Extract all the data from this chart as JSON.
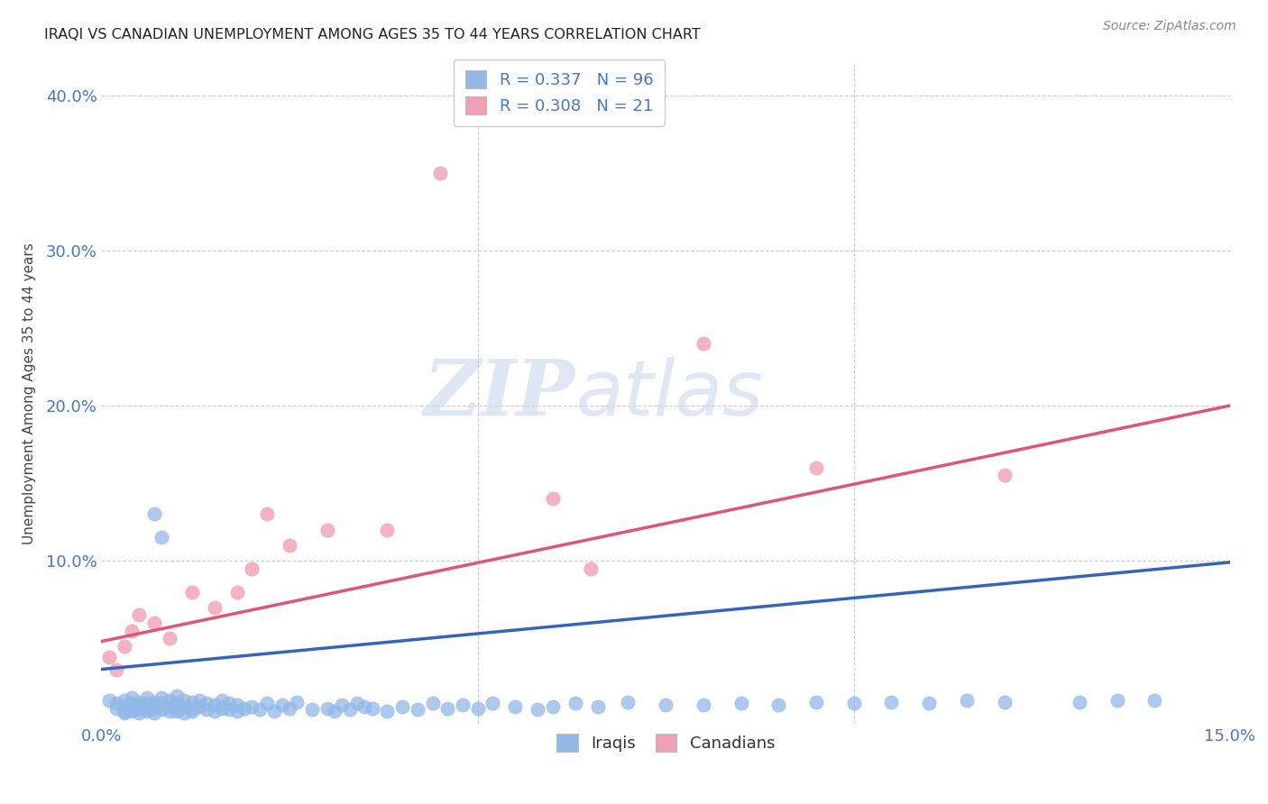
{
  "title": "IRAQI VS CANADIAN UNEMPLOYMENT AMONG AGES 35 TO 44 YEARS CORRELATION CHART",
  "source": "Source: ZipAtlas.com",
  "ylabel": "Unemployment Among Ages 35 to 44 years",
  "xlim": [
    0.0,
    0.15
  ],
  "ylim": [
    -0.005,
    0.42
  ],
  "xticks": [
    0.0,
    0.05,
    0.1,
    0.15
  ],
  "xtick_labels": [
    "0.0%",
    "",
    "",
    "15.0%"
  ],
  "yticks": [
    0.1,
    0.2,
    0.3,
    0.4
  ],
  "ytick_labels": [
    "10.0%",
    "20.0%",
    "30.0%",
    "40.0%"
  ],
  "background_color": "#ffffff",
  "grid_color": "#cccccc",
  "legend_R_iraqis": "0.337",
  "legend_N_iraqis": "96",
  "legend_R_canadians": "0.308",
  "legend_N_canadians": "21",
  "iraqis_color": "#92b8e8",
  "canadians_color": "#f0a0b5",
  "iraqis_line_color": "#3366bb",
  "canadians_line_color": "#e05575",
  "axis_label_color": "#4477cc",
  "iraqis_x": [
    0.001,
    0.002,
    0.002,
    0.003,
    0.003,
    0.003,
    0.003,
    0.004,
    0.004,
    0.004,
    0.004,
    0.005,
    0.005,
    0.005,
    0.005,
    0.006,
    0.006,
    0.006,
    0.006,
    0.007,
    0.007,
    0.007,
    0.007,
    0.008,
    0.008,
    0.008,
    0.009,
    0.009,
    0.009,
    0.01,
    0.01,
    0.01,
    0.01,
    0.011,
    0.011,
    0.011,
    0.012,
    0.012,
    0.012,
    0.013,
    0.013,
    0.014,
    0.014,
    0.015,
    0.015,
    0.016,
    0.016,
    0.017,
    0.017,
    0.018,
    0.018,
    0.019,
    0.02,
    0.021,
    0.022,
    0.023,
    0.024,
    0.025,
    0.026,
    0.028,
    0.03,
    0.031,
    0.032,
    0.033,
    0.034,
    0.035,
    0.036,
    0.038,
    0.04,
    0.042,
    0.044,
    0.046,
    0.048,
    0.05,
    0.052,
    0.055,
    0.058,
    0.06,
    0.063,
    0.066,
    0.07,
    0.075,
    0.08,
    0.085,
    0.09,
    0.095,
    0.1,
    0.105,
    0.11,
    0.115,
    0.12,
    0.13,
    0.135,
    0.14,
    0.007,
    0.008
  ],
  "iraqis_y": [
    0.01,
    0.005,
    0.008,
    0.002,
    0.006,
    0.01,
    0.003,
    0.004,
    0.008,
    0.012,
    0.003,
    0.005,
    0.009,
    0.002,
    0.007,
    0.004,
    0.008,
    0.012,
    0.003,
    0.005,
    0.009,
    0.002,
    0.007,
    0.004,
    0.008,
    0.012,
    0.003,
    0.006,
    0.01,
    0.004,
    0.008,
    0.013,
    0.003,
    0.006,
    0.01,
    0.002,
    0.005,
    0.009,
    0.003,
    0.006,
    0.01,
    0.004,
    0.008,
    0.003,
    0.007,
    0.005,
    0.01,
    0.004,
    0.008,
    0.003,
    0.007,
    0.005,
    0.006,
    0.004,
    0.008,
    0.003,
    0.007,
    0.005,
    0.009,
    0.004,
    0.005,
    0.003,
    0.007,
    0.004,
    0.008,
    0.006,
    0.005,
    0.003,
    0.006,
    0.004,
    0.008,
    0.005,
    0.007,
    0.005,
    0.008,
    0.006,
    0.004,
    0.006,
    0.008,
    0.006,
    0.009,
    0.007,
    0.007,
    0.008,
    0.007,
    0.009,
    0.008,
    0.009,
    0.008,
    0.01,
    0.009,
    0.009,
    0.01,
    0.01,
    0.13,
    0.115
  ],
  "canadians_x": [
    0.001,
    0.002,
    0.003,
    0.004,
    0.005,
    0.007,
    0.009,
    0.012,
    0.015,
    0.018,
    0.02,
    0.022,
    0.025,
    0.03,
    0.038,
    0.045,
    0.06,
    0.065,
    0.08,
    0.095,
    0.12
  ],
  "canadians_y": [
    0.038,
    0.03,
    0.045,
    0.055,
    0.065,
    0.06,
    0.05,
    0.08,
    0.07,
    0.08,
    0.095,
    0.13,
    0.11,
    0.12,
    0.12,
    0.35,
    0.14,
    0.095,
    0.24,
    0.16,
    0.155
  ],
  "iraqis_trend_x0": 0.0,
  "iraqis_trend_y0": 0.03,
  "iraqis_trend_x1": 0.15,
  "iraqis_trend_y1": 0.099,
  "canadians_trend_x0": 0.0,
  "canadians_trend_y0": 0.048,
  "canadians_trend_x1": 0.15,
  "canadians_trend_y1": 0.2
}
